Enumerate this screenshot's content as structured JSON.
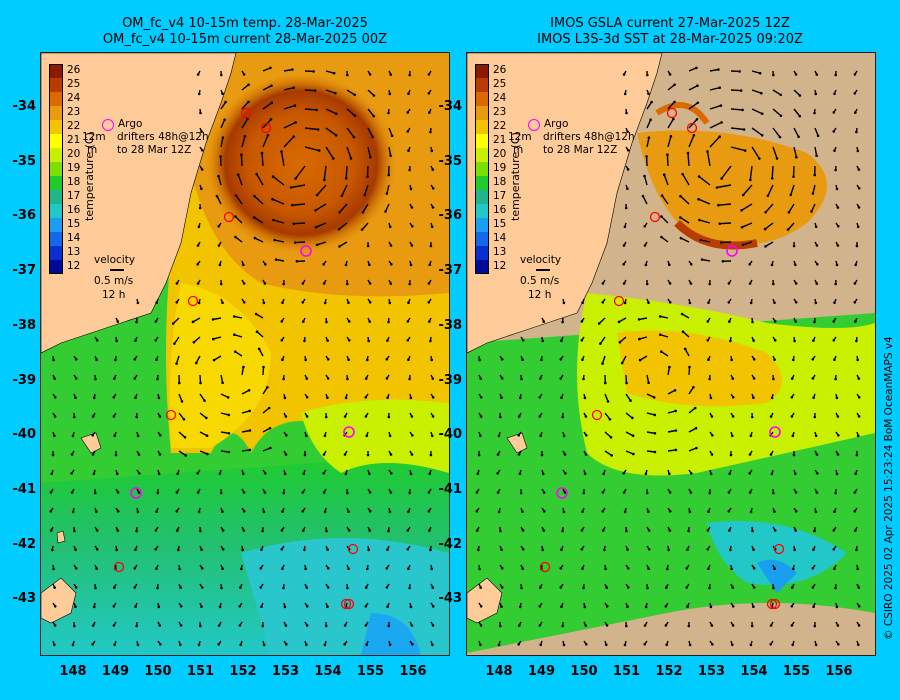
{
  "left_panel": {
    "title_line1": "OM_fc_v4  10-15m temp. 28-Mar-2025",
    "title_line2": "OM_fc_v4  10-15m current 28-Mar-2025 00Z"
  },
  "right_panel": {
    "title_line1": "IMOS GSLA current 27-Mar-2025 12Z",
    "title_line2": "IMOS L3S-3d SST at 28-Mar-2025 09:20Z"
  },
  "colorbar": {
    "title": "temperature (C)",
    "ticks": [
      "26",
      "25",
      "24",
      "23",
      "22",
      "21",
      "20",
      "19",
      "18",
      "17",
      "16",
      "15",
      "14",
      "13",
      "12"
    ],
    "colors": [
      "#8b1a00",
      "#b83c00",
      "#d86a00",
      "#e89a10",
      "#f2c400",
      "#ffff00",
      "#c8f000",
      "#7be000",
      "#1fcc2a",
      "#21b58c",
      "#21c8c8",
      "#1a9ff0",
      "#1467e8",
      "#0a2fd0",
      "#000a9a"
    ]
  },
  "legend": {
    "argo_label": "Argo",
    "drifter_label": "drifters 48h@12h",
    "drifter_prefix": "12m",
    "drifter_suffix_line": "to 28 Mar 12Z",
    "drifter_m": "m",
    "velocity_label": "velocity",
    "velocity_scale": "0.5 m/s",
    "velocity_time": "12 h"
  },
  "axes": {
    "lat_ticks": [
      "-34",
      "-35",
      "-36",
      "-37",
      "-38",
      "-39",
      "-40",
      "-41",
      "-42",
      "-43"
    ],
    "lon_ticks": [
      "148",
      "149",
      "150",
      "151",
      "152",
      "153",
      "154",
      "155",
      "156"
    ]
  },
  "colors": {
    "background": "#00ccff",
    "land": "#ffcc99",
    "land_right": "#d2b48c",
    "argo_circle": "#ff00ff",
    "drifter_circle": "#ff0000"
  },
  "credit": "© CSIRO 2025   02 Apr 2025 15:23:24 BoM OceanMAPS v4"
}
